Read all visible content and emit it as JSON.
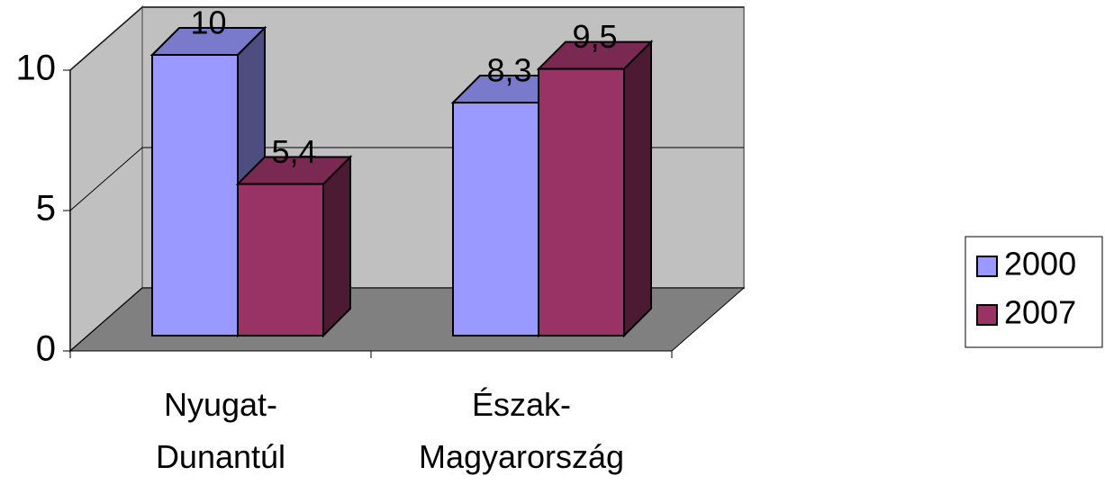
{
  "chart_data": {
    "type": "bar3d",
    "categories": [
      "Nyugat-Dunantúl",
      "Észak-Magyarország"
    ],
    "series": [
      {
        "name": "2000",
        "color": "#9999ff",
        "values": [
          10,
          8.3
        ],
        "value_labels": [
          "10",
          "8,3"
        ]
      },
      {
        "name": "2007",
        "color": "#993366",
        "values": [
          5.4,
          9.5
        ],
        "value_labels": [
          "5,4",
          "9,5"
        ]
      }
    ],
    "ylim": [
      0,
      10
    ],
    "yticks": [
      0,
      5,
      10
    ],
    "grid": true,
    "legend": "right"
  }
}
